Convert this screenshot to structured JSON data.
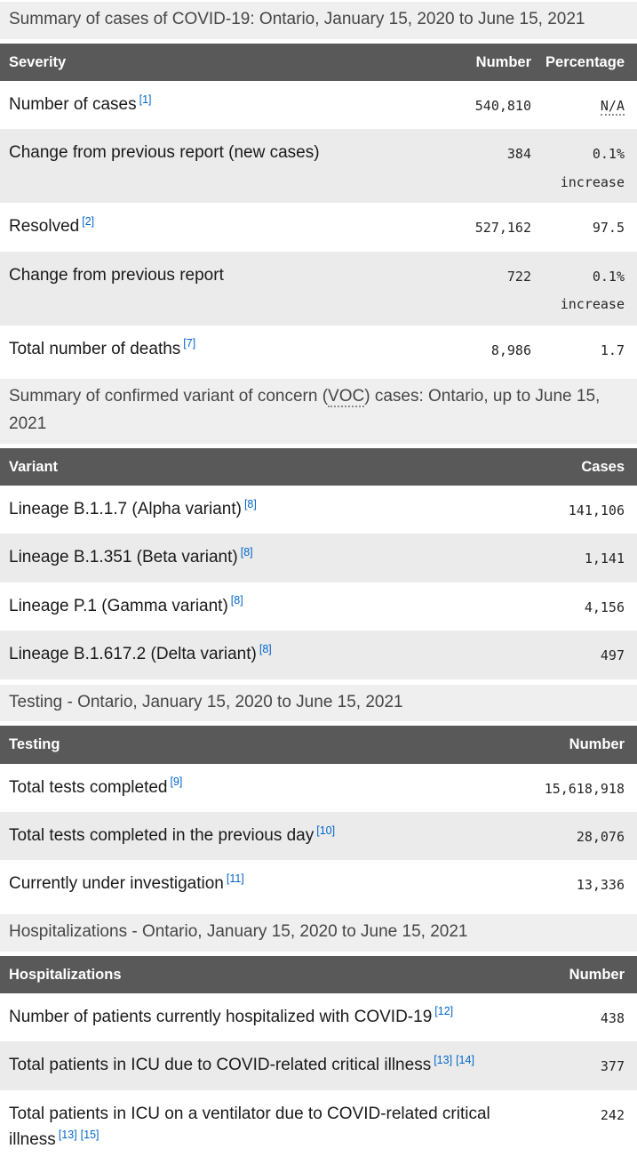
{
  "colors": {
    "table_header_bg": "#595959",
    "table_header_text": "#ffffff",
    "caption_bg": "#efefef",
    "zebra_row_bg": "#ebebeb",
    "footnote_link_blue": "#0066cc",
    "label_text": "#1a1a1a"
  },
  "sections": [
    {
      "caption": "Summary of cases of COVID-19: Ontario, January 15, 2020 to June 15, 2021",
      "columns": [
        "Severity",
        "Number",
        "Percentage"
      ],
      "rows": [
        {
          "label": "Number of cases",
          "refs": [
            "[1]"
          ],
          "number": "540,810",
          "pct": "N/A",
          "pct_note": ""
        },
        {
          "label": "Change from previous report (new cases)",
          "refs": [],
          "number": "384",
          "pct": "0.1%",
          "pct_note": "increase"
        },
        {
          "label": "Resolved",
          "refs": [
            "[2]"
          ],
          "number": "527,162",
          "pct": "97.5",
          "pct_note": ""
        },
        {
          "label": "Change from previous report",
          "refs": [],
          "number": "722",
          "pct": "0.1%",
          "pct_note": "increase"
        },
        {
          "label": "Total number of deaths",
          "refs": [
            "[7]"
          ],
          "number": "8,986",
          "pct": "1.7",
          "pct_note": ""
        }
      ]
    },
    {
      "caption_pre": "Summary of confirmed variant of concern (",
      "caption_abbr": "VOC",
      "caption_post": ") cases: Ontario, up to June 15, 2021",
      "columns": [
        "Variant",
        "Cases"
      ],
      "rows": [
        {
          "label": "Lineage B.1.1.7 (Alpha variant)",
          "refs": [
            "[8]"
          ],
          "number": "141,106"
        },
        {
          "label": "Lineage B.1.351 (Beta variant)",
          "refs": [
            "[8]"
          ],
          "number": "1,141"
        },
        {
          "label": "Lineage P.1 (Gamma variant)",
          "refs": [
            "[8]"
          ],
          "number": "4,156"
        },
        {
          "label": "Lineage B.1.617.2 (Delta variant)",
          "refs": [
            "[8]"
          ],
          "number": "497"
        }
      ]
    },
    {
      "caption": "Testing - Ontario, January 15, 2020 to June 15, 2021",
      "columns": [
        "Testing",
        "Number"
      ],
      "rows": [
        {
          "label": "Total tests completed",
          "refs": [
            "[9]"
          ],
          "number": "15,618,918"
        },
        {
          "label": "Total tests completed in the previous day",
          "refs": [
            "[10]"
          ],
          "number": "28,076"
        },
        {
          "label": "Currently under investigation",
          "refs": [
            "[11]"
          ],
          "number": "13,336"
        }
      ]
    },
    {
      "caption": "Hospitalizations - Ontario, January 15, 2020 to June 15, 2021",
      "columns": [
        "Hospitalizations",
        "Number"
      ],
      "rows": [
        {
          "label": "Number of patients currently hospitalized with COVID-19",
          "refs": [
            "[12]"
          ],
          "number": "438"
        },
        {
          "label": "Total patients in ICU due to COVID-related critical illness",
          "refs": [
            "[13]",
            "[14]"
          ],
          "number": "377"
        },
        {
          "label": "Total patients in ICU on a ventilator due to COVID-related critical illness",
          "refs": [
            "[13]",
            "[15]"
          ],
          "number": "242"
        }
      ]
    }
  ]
}
